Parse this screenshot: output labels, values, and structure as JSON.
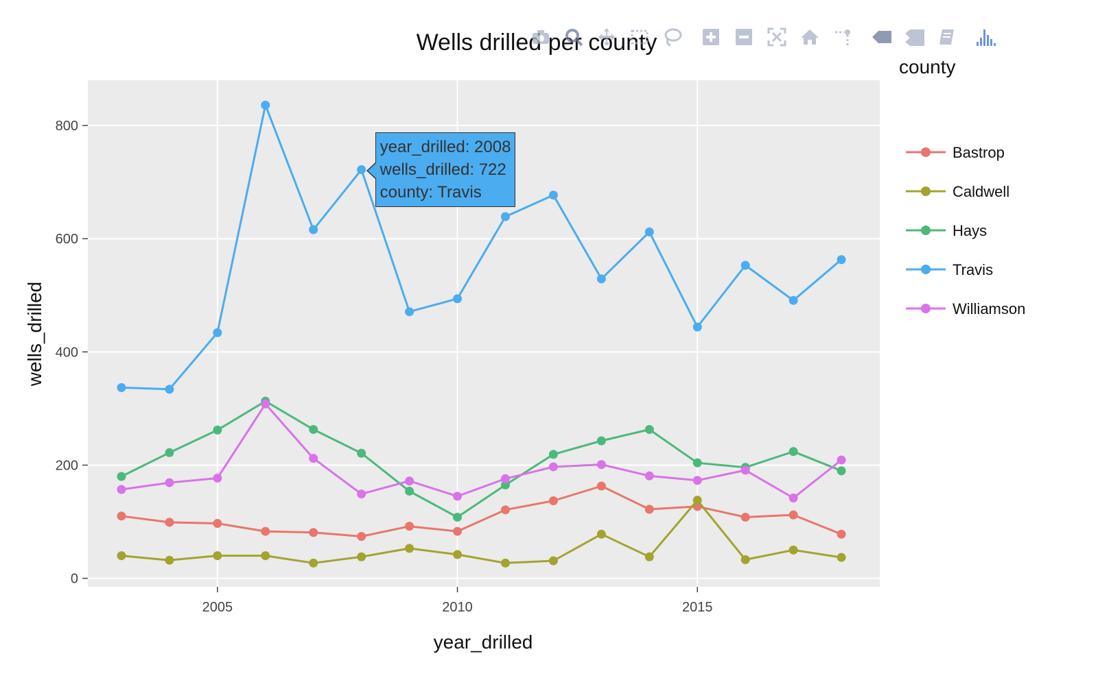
{
  "chart_data": {
    "type": "line",
    "title": "Wells drilled per county",
    "xlabel": "year_drilled",
    "ylabel": "wells_drilled",
    "xlim": [
      2002.3,
      2018.8
    ],
    "ylim": [
      -15,
      880
    ],
    "xticks": [
      2005,
      2010,
      2015
    ],
    "yticks": [
      0,
      200,
      400,
      600,
      800
    ],
    "grid": true,
    "legend_title": "county",
    "legend_position": "right",
    "x": [
      2003,
      2004,
      2005,
      2006,
      2007,
      2008,
      2009,
      2010,
      2011,
      2012,
      2013,
      2014,
      2015,
      2016,
      2017,
      2018
    ],
    "series": [
      {
        "name": "Bastrop",
        "color": "#e8766d",
        "values": [
          110,
          99,
          97,
          83,
          81,
          74,
          92,
          83,
          121,
          137,
          163,
          122,
          127,
          108,
          112,
          78
        ]
      },
      {
        "name": "Caldwell",
        "color": "#a3a32f",
        "values": [
          40,
          32,
          40,
          40,
          27,
          38,
          53,
          42,
          27,
          31,
          78,
          38,
          138,
          33,
          50,
          37
        ]
      },
      {
        "name": "Hays",
        "color": "#4db87c",
        "values": [
          180,
          222,
          262,
          313,
          263,
          221,
          154,
          108,
          165,
          219,
          243,
          263,
          204,
          196,
          224,
          190
        ]
      },
      {
        "name": "Travis",
        "color": "#4bacf0",
        "values": [
          337,
          334,
          434,
          836,
          616,
          722,
          471,
          494,
          639,
          677,
          529,
          612,
          444,
          553,
          491,
          563
        ]
      },
      {
        "name": "Williamson",
        "color": "#d873e8",
        "values": [
          157,
          169,
          177,
          308,
          212,
          149,
          172,
          145,
          176,
          197,
          201,
          181,
          173,
          191,
          142,
          209
        ]
      }
    ],
    "hover": {
      "series": "Travis",
      "x": 2008,
      "y": 722,
      "lines": [
        "year_drilled: 2008",
        "wells_drilled: 722",
        "county: Travis"
      ]
    }
  },
  "modebar": {
    "icons": [
      "camera-icon",
      "zoom-icon",
      "pan-icon",
      "box-select-icon",
      "lasso-select-icon",
      "zoom-in-icon",
      "zoom-out-icon",
      "autoscale-icon",
      "reset-axes-icon",
      "spike-lines-icon",
      "hover-closest-icon",
      "hover-compare-icon",
      "edit-chart-icon",
      "plotly-logo-icon"
    ],
    "icon_color": "#a7b1c6",
    "active_color": "#6c7a97",
    "logo_color": "#3d6ed3"
  },
  "plot_bg": "#ebebeb",
  "grid_color": "#ffffff"
}
